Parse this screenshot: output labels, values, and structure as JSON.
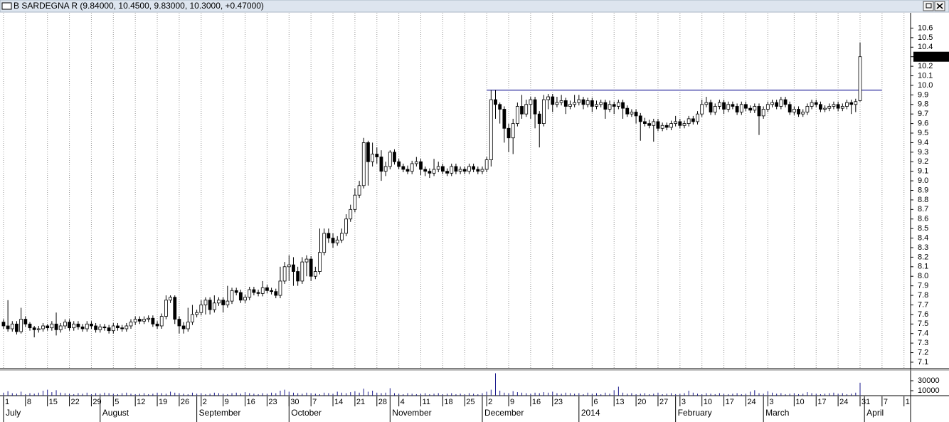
{
  "chart_data": {
    "type": "candlestick",
    "title": "B SARDEGNA R (9.84000, 10.4500, 9.83000, 10.3000, +0.47000)",
    "xlim": [
      -0.8,
      206.5
    ],
    "ylim": [
      7.04,
      10.76
    ],
    "grid": "x",
    "yticks": [
      7.1,
      7.2,
      7.3,
      7.4,
      7.5,
      7.6,
      7.7,
      7.8,
      7.9,
      {
        "value": 8,
        "label": "8.0"
      },
      8.1,
      8.2,
      8.3,
      8.4,
      8.5,
      8.6,
      8.7,
      8.8,
      8.9,
      {
        "value": 9,
        "label": "9.0"
      },
      9.1,
      9.2,
      9.3,
      9.4,
      9.5,
      9.6,
      9.7,
      9.8,
      9.9,
      {
        "value": 10,
        "label": "10.0"
      },
      10.1,
      10.2,
      10.3,
      10.4,
      10.5,
      10.6
    ],
    "xticks": [
      {
        "value": 0,
        "label": "1"
      },
      {
        "value": 5,
        "label": "8"
      },
      {
        "value": 10,
        "label": "15"
      },
      {
        "value": 15,
        "label": "22"
      },
      {
        "value": 20,
        "label": "29"
      },
      {
        "value": 25,
        "label": "5"
      },
      {
        "value": 30,
        "label": "12"
      },
      {
        "value": 35,
        "label": "19"
      },
      {
        "value": 40,
        "label": "26"
      },
      {
        "value": 45,
        "label": "2"
      },
      {
        "value": 50,
        "label": "9"
      },
      {
        "value": 55,
        "label": "16"
      },
      {
        "value": 60,
        "label": "23"
      },
      {
        "value": 65,
        "label": "30"
      },
      {
        "value": 70,
        "label": "7"
      },
      {
        "value": 75,
        "label": "14"
      },
      {
        "value": 80,
        "label": "21"
      },
      {
        "value": 85,
        "label": "28"
      },
      {
        "value": 90,
        "label": "4"
      },
      {
        "value": 95,
        "label": "11"
      },
      {
        "value": 100,
        "label": "18"
      },
      {
        "value": 105,
        "label": "25"
      },
      {
        "value": 110,
        "label": "2"
      },
      {
        "value": 115,
        "label": "9"
      },
      {
        "value": 120,
        "label": "16"
      },
      {
        "value": 125,
        "label": "23"
      },
      {
        "value": 134,
        "label": "6"
      },
      {
        "value": 139,
        "label": "13"
      },
      {
        "value": 144,
        "label": "20"
      },
      {
        "value": 149,
        "label": "27"
      },
      {
        "value": 154,
        "label": "3"
      },
      {
        "value": 159,
        "label": "10"
      },
      {
        "value": 164,
        "label": "17"
      },
      {
        "value": 169,
        "label": "24"
      },
      {
        "value": 174,
        "label": "3"
      },
      {
        "value": 180,
        "label": "10"
      },
      {
        "value": 185,
        "label": "17"
      },
      {
        "value": 190,
        "label": "24"
      },
      {
        "value": 195,
        "label": "31"
      },
      {
        "value": 200,
        "label": "7"
      },
      {
        "value": 205,
        "label": "1"
      }
    ],
    "month_ticks": [
      {
        "value": 0,
        "label": "July"
      },
      {
        "value": 22,
        "label": "August"
      },
      {
        "value": 44,
        "label": "September"
      },
      {
        "value": 65,
        "label": "October"
      },
      {
        "value": 88,
        "label": "November"
      },
      {
        "value": 109,
        "label": "December"
      },
      {
        "value": 131,
        "label": "2014"
      },
      {
        "value": 153,
        "label": "February"
      },
      {
        "value": 173,
        "label": "March"
      },
      {
        "value": 196,
        "label": "April"
      }
    ],
    "open": [
      7.52,
      7.48,
      7.45,
      7.5,
      7.42,
      7.55,
      7.5,
      7.46,
      7.44,
      7.45,
      7.48,
      7.46,
      7.5,
      7.44,
      7.48,
      7.52,
      7.46,
      7.5,
      7.47,
      7.45,
      7.5,
      7.48,
      7.44,
      7.47,
      7.46,
      7.43,
      7.48,
      7.46,
      7.45,
      7.48,
      7.52,
      7.55,
      7.53,
      7.55,
      7.56,
      7.5,
      7.48,
      7.58,
      7.75,
      7.78,
      7.55,
      7.48,
      7.45,
      7.52,
      7.6,
      7.62,
      7.7,
      7.75,
      7.65,
      7.72,
      7.75,
      7.7,
      7.74,
      7.85,
      7.83,
      7.75,
      7.78,
      7.86,
      7.83,
      7.82,
      7.88,
      7.85,
      7.84,
      7.8,
      7.95,
      8.1,
      8.12,
      8.05,
      7.95,
      8.15,
      8.18,
      8.0,
      8.05,
      8.25,
      8.45,
      8.4,
      8.35,
      8.38,
      8.45,
      8.6,
      8.7,
      8.85,
      8.95,
      9.4,
      9.2,
      9.28,
      9.25,
      9.1,
      9.15,
      9.3,
      9.2,
      9.15,
      9.12,
      9.1,
      9.18,
      9.2,
      9.12,
      9.1,
      9.08,
      9.12,
      9.15,
      9.1,
      9.08,
      9.15,
      9.1,
      9.12,
      9.1,
      9.15,
      9.12,
      9.1,
      9.12,
      9.22,
      9.85,
      9.8,
      9.75,
      9.55,
      9.45,
      9.6,
      9.78,
      9.7,
      9.8,
      9.85,
      9.7,
      9.6,
      9.85,
      9.88,
      9.8,
      9.82,
      9.84,
      9.78,
      9.8,
      9.82,
      9.85,
      9.8,
      9.84,
      9.78,
      9.8,
      9.82,
      9.75,
      9.8,
      9.78,
      9.82,
      9.76,
      9.7,
      9.72,
      9.68,
      9.62,
      9.6,
      9.58,
      9.62,
      9.55,
      9.58,
      9.56,
      9.6,
      9.62,
      9.58,
      9.6,
      9.65,
      9.62,
      9.7,
      9.8,
      9.82,
      9.72,
      9.78,
      9.82,
      9.75,
      9.8,
      9.78,
      9.72,
      9.8,
      9.76,
      9.74,
      9.78,
      9.68,
      9.75,
      9.8,
      9.82,
      9.78,
      9.85,
      9.8,
      9.72,
      9.75,
      9.7,
      9.72,
      9.78,
      9.82,
      9.8,
      9.75,
      9.76,
      9.78,
      9.8,
      9.76,
      9.78,
      9.82,
      9.8,
      9.84
    ],
    "high": [
      7.55,
      7.75,
      7.53,
      7.53,
      7.67,
      7.58,
      7.52,
      7.48,
      7.48,
      7.51,
      7.5,
      7.53,
      7.62,
      7.51,
      7.55,
      7.55,
      7.53,
      7.53,
      7.5,
      7.53,
      7.53,
      7.51,
      7.5,
      7.5,
      7.49,
      7.51,
      7.51,
      7.49,
      7.51,
      7.55,
      7.58,
      7.58,
      7.58,
      7.59,
      7.59,
      7.53,
      7.61,
      7.8,
      7.8,
      7.8,
      7.58,
      7.52,
      7.67,
      7.7,
      7.65,
      7.75,
      7.78,
      7.78,
      7.8,
      7.78,
      7.78,
      7.9,
      7.88,
      7.88,
      7.86,
      7.81,
      7.89,
      7.89,
      7.86,
      7.95,
      7.91,
      7.88,
      7.87,
      8.1,
      8.15,
      8.22,
      8.2,
      8.1,
      8.2,
      8.22,
      8.21,
      8.1,
      8.5,
      8.5,
      8.5,
      8.45,
      8.42,
      8.5,
      8.65,
      8.75,
      8.92,
      9.0,
      9.45,
      9.42,
      9.4,
      9.35,
      9.32,
      9.2,
      9.32,
      9.33,
      9.23,
      9.18,
      9.16,
      9.21,
      9.25,
      9.23,
      9.15,
      9.13,
      9.23,
      9.2,
      9.18,
      9.13,
      9.18,
      9.18,
      9.15,
      9.15,
      9.18,
      9.18,
      9.15,
      9.15,
      9.25,
      9.95,
      9.95,
      9.82,
      9.78,
      9.6,
      9.65,
      9.82,
      9.9,
      9.85,
      9.88,
      9.88,
      9.73,
      9.9,
      9.91,
      9.91,
      9.88,
      9.9,
      9.87,
      9.84,
      9.9,
      9.9,
      9.88,
      9.87,
      9.87,
      9.84,
      9.85,
      9.85,
      9.84,
      9.83,
      9.85,
      9.85,
      9.79,
      9.75,
      9.75,
      9.71,
      9.66,
      9.64,
      9.65,
      9.65,
      9.61,
      9.61,
      9.63,
      9.68,
      9.65,
      9.63,
      9.68,
      9.68,
      9.73,
      9.85,
      9.88,
      9.85,
      9.81,
      9.85,
      9.85,
      9.83,
      9.83,
      9.81,
      9.83,
      9.83,
      9.79,
      9.81,
      9.81,
      9.78,
      9.83,
      9.85,
      9.85,
      9.88,
      9.88,
      9.83,
      9.78,
      9.78,
      9.75,
      9.81,
      9.85,
      9.85,
      9.83,
      9.79,
      9.81,
      9.83,
      9.83,
      9.81,
      9.85,
      9.85,
      9.86,
      10.45
    ],
    "low": [
      7.45,
      7.42,
      7.42,
      7.39,
      7.4,
      7.47,
      7.43,
      7.36,
      7.41,
      7.42,
      7.43,
      7.43,
      7.38,
      7.41,
      7.45,
      7.43,
      7.43,
      7.44,
      7.42,
      7.42,
      7.45,
      7.41,
      7.41,
      7.43,
      7.4,
      7.4,
      7.43,
      7.42,
      7.42,
      7.45,
      7.49,
      7.5,
      7.5,
      7.52,
      7.47,
      7.45,
      7.45,
      7.55,
      7.72,
      7.5,
      7.4,
      7.4,
      7.42,
      7.49,
      7.57,
      7.59,
      7.6,
      7.6,
      7.62,
      7.69,
      7.62,
      7.67,
      7.71,
      7.8,
      7.72,
      7.72,
      7.75,
      7.8,
      7.79,
      7.79,
      7.82,
      7.81,
      7.77,
      7.77,
      7.92,
      7.95,
      7.9,
      7.9,
      7.92,
      8.0,
      7.95,
      7.97,
      8.02,
      8.22,
      8.35,
      8.3,
      8.32,
      8.35,
      8.42,
      8.57,
      8.67,
      8.82,
      8.92,
      8.95,
      9.15,
      9.18,
      9.0,
      9.05,
      9.12,
      9.17,
      9.12,
      9.09,
      9.07,
      9.07,
      9.15,
      9.06,
      9.05,
      9.03,
      9.05,
      9.09,
      9.07,
      9.05,
      9.05,
      9.07,
      9.07,
      9.07,
      9.07,
      9.09,
      9.07,
      9.07,
      9.09,
      9.15,
      9.65,
      9.6,
      9.4,
      9.3,
      9.28,
      9.57,
      9.65,
      9.67,
      9.65,
      9.55,
      9.35,
      9.57,
      9.75,
      9.72,
      9.77,
      9.79,
      9.7,
      9.75,
      9.77,
      9.79,
      9.75,
      9.77,
      9.72,
      9.75,
      9.77,
      9.65,
      9.72,
      9.7,
      9.75,
      9.65,
      9.67,
      9.67,
      9.6,
      9.42,
      9.57,
      9.55,
      9.41,
      9.52,
      9.52,
      9.53,
      9.53,
      9.57,
      9.55,
      9.55,
      9.57,
      9.59,
      9.59,
      9.67,
      9.77,
      9.69,
      9.69,
      9.75,
      9.7,
      9.72,
      9.75,
      9.69,
      9.69,
      9.73,
      9.71,
      9.71,
      9.48,
      9.65,
      9.72,
      9.77,
      9.75,
      9.75,
      9.77,
      9.69,
      9.69,
      9.67,
      9.67,
      9.69,
      9.75,
      9.77,
      9.72,
      9.72,
      9.73,
      9.75,
      9.73,
      9.73,
      9.75,
      9.7,
      9.72,
      9.83
    ],
    "close": [
      7.48,
      7.45,
      7.5,
      7.42,
      7.55,
      7.5,
      7.46,
      7.44,
      7.45,
      7.48,
      7.46,
      7.5,
      7.44,
      7.48,
      7.52,
      7.46,
      7.5,
      7.47,
      7.45,
      7.5,
      7.48,
      7.44,
      7.47,
      7.46,
      7.43,
      7.48,
      7.46,
      7.45,
      7.48,
      7.52,
      7.55,
      7.53,
      7.55,
      7.56,
      7.5,
      7.48,
      7.58,
      7.75,
      7.78,
      7.55,
      7.48,
      7.45,
      7.52,
      7.6,
      7.62,
      7.7,
      7.75,
      7.65,
      7.72,
      7.75,
      7.7,
      7.74,
      7.85,
      7.83,
      7.75,
      7.78,
      7.86,
      7.83,
      7.82,
      7.88,
      7.85,
      7.84,
      7.8,
      7.95,
      8.1,
      8.12,
      8.05,
      7.95,
      8.15,
      8.18,
      8.0,
      8.05,
      8.25,
      8.45,
      8.4,
      8.35,
      8.38,
      8.45,
      8.6,
      8.7,
      8.85,
      8.95,
      9.4,
      9.2,
      9.28,
      9.25,
      9.1,
      9.15,
      9.3,
      9.2,
      9.15,
      9.12,
      9.1,
      9.18,
      9.2,
      9.12,
      9.1,
      9.08,
      9.12,
      9.15,
      9.1,
      9.08,
      9.15,
      9.1,
      9.12,
      9.1,
      9.15,
      9.12,
      9.1,
      9.12,
      9.22,
      9.85,
      9.8,
      9.75,
      9.55,
      9.45,
      9.6,
      9.78,
      9.7,
      9.8,
      9.85,
      9.7,
      9.6,
      9.85,
      9.88,
      9.8,
      9.82,
      9.84,
      9.78,
      9.8,
      9.82,
      9.85,
      9.8,
      9.84,
      9.78,
      9.8,
      9.82,
      9.75,
      9.8,
      9.78,
      9.82,
      9.76,
      9.7,
      9.72,
      9.68,
      9.62,
      9.6,
      9.58,
      9.62,
      9.55,
      9.58,
      9.56,
      9.6,
      9.62,
      9.58,
      9.6,
      9.65,
      9.62,
      9.7,
      9.8,
      9.82,
      9.72,
      9.78,
      9.82,
      9.75,
      9.8,
      9.78,
      9.72,
      9.8,
      9.76,
      9.74,
      9.78,
      9.68,
      9.75,
      9.8,
      9.82,
      9.78,
      9.85,
      9.8,
      9.72,
      9.75,
      9.7,
      9.72,
      9.78,
      9.82,
      9.8,
      9.75,
      9.76,
      9.78,
      9.8,
      9.76,
      9.78,
      9.82,
      9.8,
      9.83,
      10.3
    ],
    "trendline": {
      "value": 9.95,
      "x": [
        110,
        200
      ],
      "color": "#2a2a9c"
    },
    "last_label": {
      "value": 10.3,
      "label": "10.30000"
    },
    "volume": {
      "color": "#1a1a8c",
      "ylim": [
        0,
        50000
      ],
      "yticks": [
        10000,
        30000
      ],
      "values": [
        6000,
        9000,
        5000,
        4000,
        8000,
        3000,
        5000,
        4000,
        6000,
        10000,
        12000,
        7000,
        11000,
        6000,
        5000,
        4000,
        3000,
        5000,
        4000,
        6000,
        3000,
        5000,
        4000,
        6000,
        5000,
        4000,
        3000,
        5000,
        6000,
        4000,
        3000,
        4000,
        5000,
        3000,
        4000,
        6000,
        5000,
        4000,
        8000,
        6000,
        5000,
        4000,
        3000,
        6000,
        4000,
        5000,
        3000,
        4000,
        6000,
        5000,
        4000,
        3000,
        5000,
        6000,
        4000,
        7000,
        5000,
        4000,
        3000,
        5000,
        4000,
        6000,
        5000,
        10000,
        12000,
        8000,
        6000,
        5000,
        4000,
        6000,
        5000,
        4000,
        3000,
        6000,
        5000,
        4000,
        8000,
        6000,
        5000,
        7000,
        9000,
        6000,
        14000,
        8000,
        10000,
        6000,
        5000,
        6000,
        15000,
        5000,
        4000,
        3000,
        5000,
        4000,
        3000,
        4000,
        5000,
        3000,
        4000,
        5000,
        3000,
        4000,
        5000,
        3000,
        4000,
        3000,
        5000,
        4000,
        3000,
        5000,
        8000,
        12000,
        45000,
        10000,
        6000,
        5000,
        9000,
        7000,
        6000,
        5000,
        4000,
        6000,
        5000,
        7000,
        6000,
        8000,
        5000,
        4000,
        6000,
        5000,
        4000,
        5000,
        3000,
        6000,
        4000,
        5000,
        3000,
        6000,
        4000,
        11000,
        18000,
        6000,
        4000,
        5000,
        3000,
        4000,
        5000,
        3000,
        4000,
        6000,
        3000,
        4000,
        5000,
        3000,
        4000,
        5000,
        10000,
        6000,
        4000,
        3000,
        5000,
        4000,
        3000,
        5000,
        4000,
        3000,
        4000,
        5000,
        3000,
        4000,
        8000,
        11000,
        5000,
        4000,
        9000,
        6000,
        4000,
        5000,
        3000,
        4000,
        5000,
        3000,
        4000,
        7000,
        5000,
        4000,
        3000,
        4000,
        5000,
        6000,
        4000,
        5000,
        3000,
        4000,
        6000,
        26000
      ]
    }
  }
}
